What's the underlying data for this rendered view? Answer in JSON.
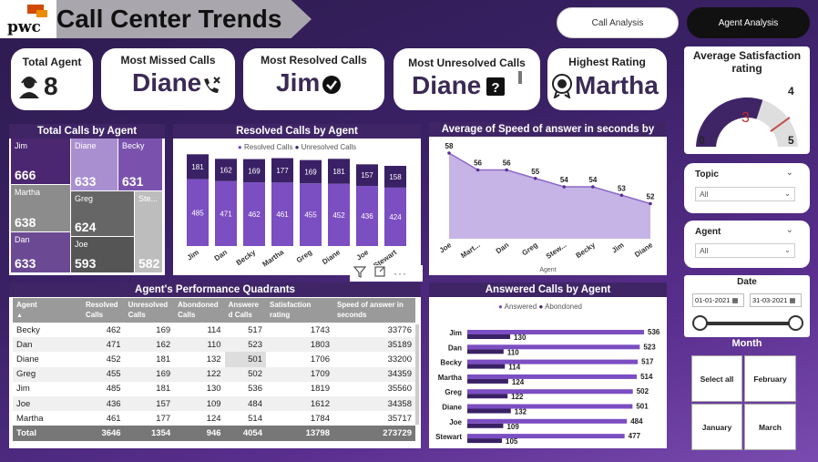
{
  "header": {
    "logo_text": "pwc",
    "title": "Call Center Trends",
    "nav": [
      {
        "label": "Call Analysis"
      },
      {
        "label": "Agent Analysis"
      }
    ]
  },
  "kpis": {
    "total_agent": {
      "label": "Total Agent",
      "value": "8"
    },
    "most_missed": {
      "label": "Most Missed Calls",
      "value": "Diane"
    },
    "most_resolved": {
      "label": "Most Resolved Calls",
      "value": "Jim"
    },
    "most_unresolved": {
      "label": "Most Unresolved Calls",
      "value": "Diane"
    },
    "highest_rating": {
      "label": "Highest Rating",
      "value": "Martha"
    }
  },
  "satisfaction": {
    "title": "Average Satisfaction rating",
    "value": "3",
    "min": "0",
    "max": "5",
    "target": "4",
    "value_num": 3,
    "target_num": 4,
    "max_num": 5
  },
  "treemap": {
    "title": "Total Calls by Agent",
    "items": [
      {
        "name": "Jim",
        "value": "666",
        "color": "#4a2770"
      },
      {
        "name": "Diane",
        "value": "633",
        "color": "#a98fd0"
      },
      {
        "name": "Becky",
        "value": "631",
        "color": "#7a52ad"
      },
      {
        "name": "Martha",
        "value": "638",
        "color": "#8c8c8c"
      },
      {
        "name": "Greg",
        "value": "624",
        "color": "#666666"
      },
      {
        "name": "Stewart",
        "value": "582",
        "color": "#bdbdbd",
        "short": "Ste..."
      },
      {
        "name": "Dan",
        "value": "633",
        "color": "#6b4a93"
      },
      {
        "name": "Joe",
        "value": "593",
        "color": "#555555"
      }
    ]
  },
  "resolved_chart": {
    "title": "Resolved Calls by Agent",
    "legend": [
      "Resolved Calls",
      "Unresolved Calls"
    ]
  },
  "speed_chart": {
    "title": "Average of Speed of answer in seconds by Agent",
    "xlabel": "Agent"
  },
  "answered_chart": {
    "title": "Answered Calls by Agent",
    "legend": [
      "Answered",
      "Abondoned"
    ]
  },
  "chart_data": [
    {
      "type": "bar",
      "title": "Resolved Calls by Agent",
      "categories": [
        "Jim",
        "Dan",
        "Becky",
        "Martha",
        "Greg",
        "Diane",
        "Joe",
        "Stewart"
      ],
      "series": [
        {
          "name": "Resolved Calls",
          "values": [
            485,
            471,
            462,
            461,
            455,
            452,
            436,
            424
          ],
          "color": "#7b4ec2"
        },
        {
          "name": "Unresolved Calls",
          "values": [
            181,
            162,
            169,
            177,
            169,
            181,
            157,
            158
          ],
          "color": "#3a2166"
        }
      ],
      "stacked": true
    },
    {
      "type": "area",
      "title": "Average of Speed of answer in seconds by Agent",
      "xlabel": "Agent",
      "categories": [
        "Joe",
        "Mart...",
        "Dan",
        "Greg",
        "Stew...",
        "Becky",
        "Jim",
        "Diane"
      ],
      "values": [
        58,
        56,
        56,
        55,
        54,
        54,
        53,
        52
      ],
      "color": "#8c6ac8"
    },
    {
      "type": "bar",
      "orientation": "horizontal",
      "title": "Answered Calls by Agent",
      "categories": [
        "Jim",
        "Dan",
        "Becky",
        "Martha",
        "Greg",
        "Diane",
        "Joe",
        "Stewart"
      ],
      "series": [
        {
          "name": "Answered",
          "values": [
            536,
            523,
            517,
            514,
            502,
            501,
            484,
            477
          ],
          "color": "#7b4ec2"
        },
        {
          "name": "Abondoned",
          "values": [
            130,
            110,
            114,
            124,
            122,
            132,
            109,
            105
          ],
          "color": "#3a2166"
        }
      ]
    }
  ],
  "table": {
    "title": "Agent's Performance Quadrants",
    "columns": [
      "Agent",
      "Resolved Calls",
      "Unresolved Calls",
      "Abondoned Calls",
      "Answere d Calls",
      "Satisfaction rating",
      "Speed of answer in seconds"
    ],
    "rows": [
      [
        "Becky",
        "462",
        "169",
        "114",
        "517",
        "1743",
        "33776"
      ],
      [
        "Dan",
        "471",
        "162",
        "110",
        "523",
        "1803",
        "35189"
      ],
      [
        "Diane",
        "452",
        "181",
        "132",
        "501",
        "1706",
        "33200"
      ],
      [
        "Greg",
        "455",
        "169",
        "122",
        "502",
        "1709",
        "34359"
      ],
      [
        "Jim",
        "485",
        "181",
        "130",
        "536",
        "1819",
        "35560"
      ],
      [
        "Joe",
        "436",
        "157",
        "109",
        "484",
        "1612",
        "34358"
      ],
      [
        "Martha",
        "461",
        "177",
        "124",
        "514",
        "1784",
        "35717"
      ]
    ],
    "total": [
      "Total",
      "3646",
      "1354",
      "946",
      "4054",
      "13798",
      "273729"
    ]
  },
  "slicers": {
    "topic": {
      "label": "Topic",
      "value": "All"
    },
    "agent": {
      "label": "Agent",
      "value": "All"
    },
    "date": {
      "label": "Date",
      "start": "01-01-2021",
      "end": "31-03-2021"
    },
    "month": {
      "label": "Month",
      "options": [
        "Select all",
        "February",
        "January",
        "March"
      ]
    }
  },
  "colors": {
    "accent": "#3f2566",
    "resolved": "#7b4ec2",
    "unresolved": "#3a2166"
  }
}
